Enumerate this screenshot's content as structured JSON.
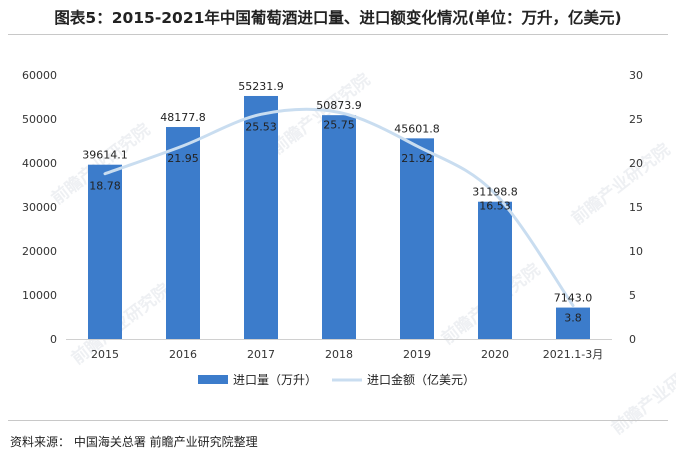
{
  "title": "图表5：2015-2021年中国葡萄酒进口量、进口额变化情况(单位：万升，亿美元)",
  "source": "资料来源：  中国海关总署 前瞻产业研究院整理",
  "watermark": "前瞻产业研究院",
  "colors": {
    "bar": "#3c7ccb",
    "line": "#c9ddf0",
    "text": "#222222"
  },
  "chart_data": {
    "type": "bar",
    "categories": [
      "2015",
      "2016",
      "2017",
      "2018",
      "2019",
      "2020",
      "2021.1-3月"
    ],
    "series": [
      {
        "name": "进口量（万升）",
        "type": "bar",
        "axis": "left",
        "values": [
          39614.1,
          48177.8,
          55231.9,
          50873.9,
          45601.8,
          31198.8,
          7143.0
        ],
        "labels": [
          "39614.1",
          "48177.8",
          "55231.9",
          "50873.9",
          "45601.8",
          "31198.8",
          "7143.0"
        ]
      },
      {
        "name": "进口金额（亿美元）",
        "type": "line",
        "axis": "right",
        "smooth": true,
        "values": [
          18.78,
          21.95,
          25.53,
          25.75,
          21.92,
          16.53,
          3.8
        ],
        "labels": [
          "18.78",
          "21.95",
          "25.53",
          "25.75",
          "21.92",
          "16.53",
          "3.8"
        ]
      }
    ],
    "y_left": {
      "min": 0,
      "max": 60000,
      "ticks": [
        "0",
        "10000",
        "20000",
        "30000",
        "40000",
        "50000",
        "60000"
      ]
    },
    "y_right": {
      "min": 0,
      "max": 30,
      "ticks": [
        "0",
        "5",
        "10",
        "15",
        "20",
        "25",
        "30"
      ]
    },
    "legend": "bottom",
    "grid": false
  }
}
